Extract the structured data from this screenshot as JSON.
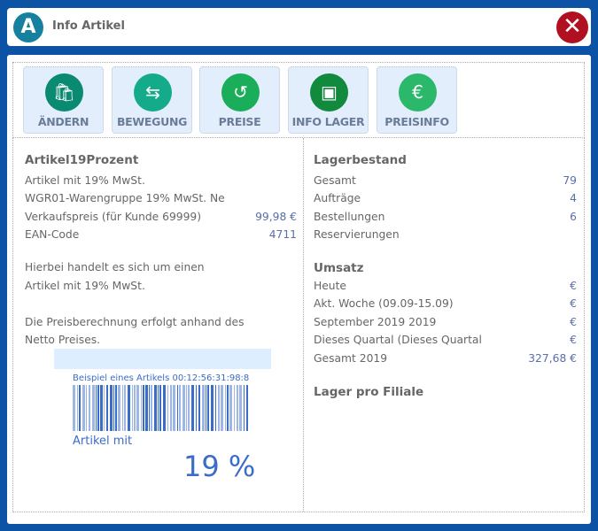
{
  "window": {
    "title": "Info Artikel",
    "logo_text": "A",
    "close_icon": "close-icon"
  },
  "toolbar": {
    "buttons": [
      {
        "label": "ÄNDERN",
        "icon": "bag-edit-icon",
        "color": "#0a8a70"
      },
      {
        "label": "BEWEGUNG",
        "icon": "bag-transfer-icon",
        "color": "#14ab8a"
      },
      {
        "label": "PREISE",
        "icon": "history-icon",
        "color": "#1aae5a"
      },
      {
        "label": "INFO LAGER",
        "icon": "hand-truck-icon",
        "color": "#118a3e"
      },
      {
        "label": "PREISINFO",
        "icon": "bag-euro-info-icon",
        "color": "#2bb86a"
      }
    ]
  },
  "article": {
    "name": "Artikel19Prozent",
    "description": "Artikel mit 19% MwSt.",
    "group": "WGR01-Warengruppe 19% MwSt. Ne",
    "price_label": "Verkaufspreis (für Kunde 69999)",
    "price_value": "99,98 €",
    "ean_label": "EAN-Code",
    "ean_value": "4711",
    "note1_line1": "Hierbei handelt es sich um einen",
    "note1_line2": "Artikel mit 19% MwSt.",
    "note2_line1": "Die Preisberechnung erfolgt anhand des",
    "note2_line2": "Netto Preises."
  },
  "label_preview": {
    "barcode_text": "Beispiel eines Artikels 00:12:56:31:98:8",
    "text": "Artikel mit",
    "percent": "19 %"
  },
  "stock": {
    "heading": "Lagerbestand",
    "rows": [
      {
        "label": "Gesamt",
        "value": "79"
      },
      {
        "label": "Aufträge",
        "value": "4"
      },
      {
        "label": "Bestellungen",
        "value": "6"
      },
      {
        "label": "Reservierungen",
        "value": ""
      }
    ]
  },
  "sales": {
    "heading": "Umsatz",
    "rows": [
      {
        "label": "Heute",
        "value": "€"
      },
      {
        "label": "Akt. Woche (09.09-15.09)",
        "value": "€"
      },
      {
        "label": "September 2019 2019",
        "value": "€"
      },
      {
        "label": "Dieses Quartal (Dieses Quartal",
        "value": "€"
      },
      {
        "label": "Gesamt 2019",
        "value": "327,68 €"
      }
    ]
  },
  "branch": {
    "heading": "Lager pro Filiale"
  }
}
